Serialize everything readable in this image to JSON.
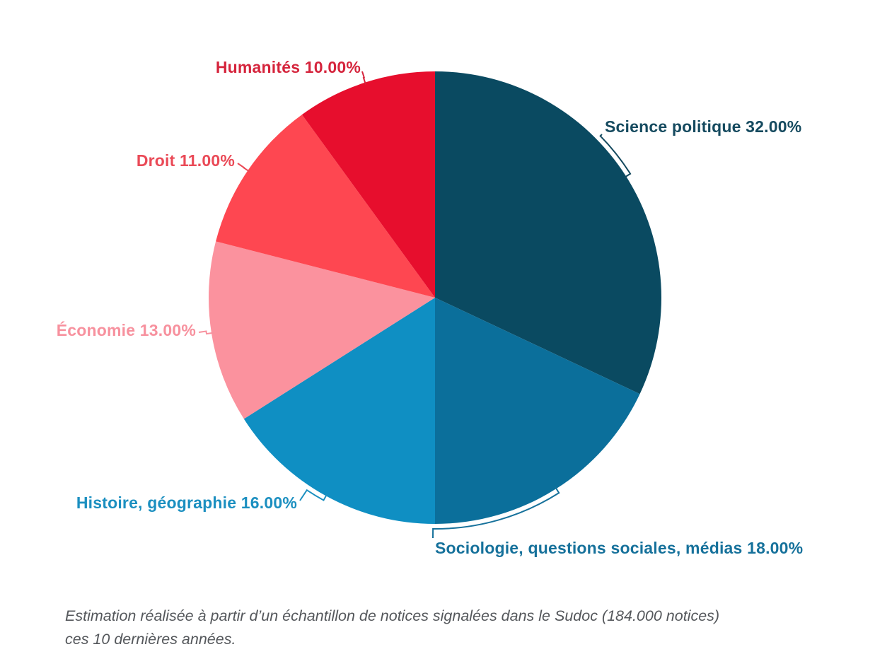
{
  "chart_data": {
    "type": "pie",
    "title": "",
    "legend_position": "none",
    "start_angle_deg": 0,
    "direction": "clockwise",
    "background": "#ffffff",
    "slices": [
      {
        "label": "Science politique",
        "value": 32.0,
        "display": "Science politique 32.00%",
        "color": "#0a4a61",
        "label_color": "#154a5f"
      },
      {
        "label": "Sociologie, questions sociales, médias",
        "value": 18.0,
        "display": "Sociologie, questions sociales, médias 18.00%",
        "color": "#0b6f9b",
        "label_color": "#16719b"
      },
      {
        "label": "Histoire, géographie",
        "value": 16.0,
        "display": "Histoire, géographie 16.00%",
        "color": "#0f8fc3",
        "label_color": "#1b8fc0"
      },
      {
        "label": "Économie",
        "value": 13.0,
        "display": "Économie 13.00%",
        "color": "#fb929e",
        "label_color": "#f7919e"
      },
      {
        "label": "Droit",
        "value": 11.0,
        "display": "Droit 11.00%",
        "color": "#fe4751",
        "label_color": "#ea4a57"
      },
      {
        "label": "Humanités",
        "value": 10.0,
        "display": "Humanités 10.00%",
        "color": "#e70e2d",
        "label_color": "#d5243c"
      }
    ]
  },
  "caption": {
    "line1": "Estimation réalisée à partir d’un échantillon de notices signalées dans le Sudoc (184.000 notices)",
    "line2": "ces 10 dernières années."
  }
}
